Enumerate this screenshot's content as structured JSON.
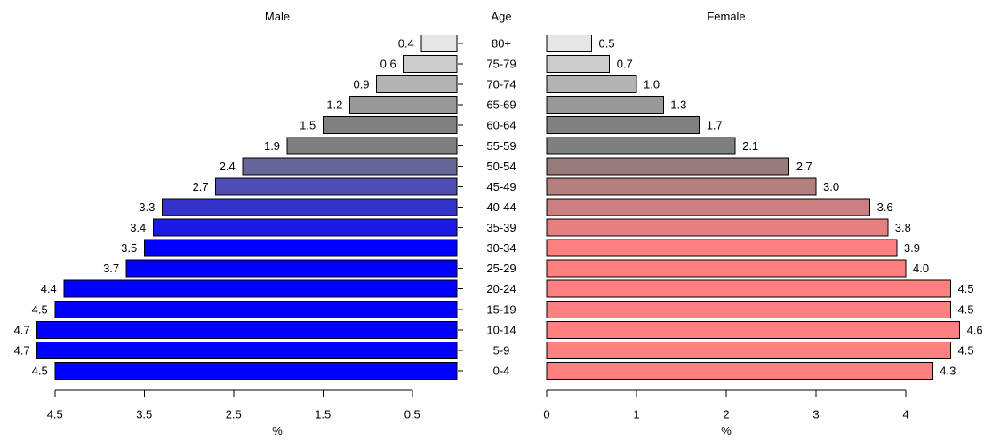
{
  "chart_data": {
    "type": "bar",
    "layout": "population-pyramid",
    "orientation": "horizontal",
    "category_label": "Age",
    "categories": [
      "80+",
      "75-79",
      "70-74",
      "65-69",
      "60-64",
      "55-59",
      "50-54",
      "45-49",
      "40-44",
      "35-39",
      "30-34",
      "25-29",
      "20-24",
      "15-19",
      "10-14",
      "5-9",
      "0-4"
    ],
    "series": [
      {
        "name": "Male",
        "side": "left",
        "direction": "reversed",
        "xlabel": "%",
        "xlim": [
          0,
          4.7
        ],
        "ticks": [
          4.5,
          3.5,
          2.5,
          1.5,
          0.5
        ],
        "values": [
          0.4,
          0.6,
          0.9,
          1.2,
          1.5,
          1.9,
          2.4,
          2.7,
          3.3,
          3.4,
          3.5,
          3.7,
          4.4,
          4.5,
          4.7,
          4.7,
          4.5
        ],
        "value_labels": [
          "0.4",
          "0.6",
          "0.9",
          "1.2",
          "1.5",
          "1.9",
          "2.4",
          "2.7",
          "3.3",
          "3.4",
          "3.5",
          "3.7",
          "4.4",
          "4.5",
          "4.7",
          "4.7",
          "4.5"
        ],
        "colors": [
          "#e6e6e6",
          "#cccccc",
          "#b3b3b3",
          "#999999",
          "#808080",
          "#7f7f7f",
          "#666699",
          "#4d4db3",
          "#3333cc",
          "#1a1ae6",
          "#0000ff",
          "#0000ff",
          "#0000ff",
          "#0000ff",
          "#0000ff",
          "#0000ff",
          "#0000ff"
        ]
      },
      {
        "name": "Female",
        "side": "right",
        "direction": "normal",
        "xlabel": "%",
        "xlim": [
          0,
          4.6
        ],
        "ticks": [
          0,
          1,
          2,
          3,
          4
        ],
        "values": [
          0.5,
          0.7,
          1.0,
          1.3,
          1.7,
          2.1,
          2.7,
          3.0,
          3.6,
          3.8,
          3.9,
          4.0,
          4.5,
          4.5,
          4.6,
          4.5,
          4.3
        ],
        "value_labels": [
          "0.5",
          "0.7",
          "1.0",
          "1.3",
          "1.7",
          "2.1",
          "2.7",
          "3.0",
          "3.6",
          "3.8",
          "3.9",
          "4.0",
          "4.5",
          "4.5",
          "4.6",
          "4.5",
          "4.3"
        ],
        "colors": [
          "#e6e6e6",
          "#cccccc",
          "#b3b3b3",
          "#999999",
          "#808080",
          "#7f7f7f",
          "#997a7a",
          "#b37f7f",
          "#cc7f7f",
          "#e68080",
          "#ff8080",
          "#ff8080",
          "#ff8080",
          "#ff8080",
          "#ff8080",
          "#ff8080",
          "#ff8080"
        ]
      }
    ],
    "bar_outline_color": "#000000",
    "axis_color": "#000000",
    "grid": false,
    "legend": "none"
  }
}
